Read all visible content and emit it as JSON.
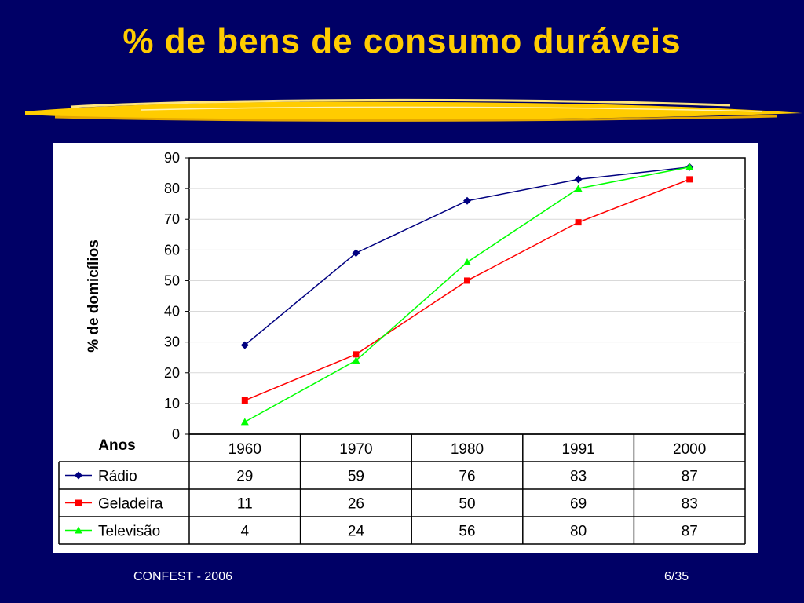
{
  "slide": {
    "title": "% de bens de consumo duráveis",
    "footer_left": "CONFEST - 2006",
    "footer_right": "6/35"
  },
  "chart_data": {
    "type": "line",
    "title": "",
    "xlabel": "",
    "ylabel": "% de domicílios",
    "ylim": [
      0,
      90
    ],
    "yticks": [
      0,
      10,
      20,
      30,
      40,
      50,
      60,
      70,
      80,
      90
    ],
    "grid": true,
    "categories": [
      "1960",
      "1970",
      "1980",
      "1991",
      "2000"
    ],
    "table_header": "Anos",
    "series": [
      {
        "name": "Rádio",
        "values": [
          29,
          59,
          76,
          83,
          87
        ],
        "color": "#000080",
        "marker": "diamond"
      },
      {
        "name": "Geladeira",
        "values": [
          11,
          26,
          50,
          69,
          83
        ],
        "color": "#FF0000",
        "marker": "square"
      },
      {
        "name": "Televisão",
        "values": [
          4,
          24,
          56,
          80,
          87
        ],
        "color": "#00FF00",
        "marker": "triangle"
      }
    ]
  },
  "colors": {
    "background": "#000066",
    "title": "#FFCC00",
    "brush": "#FFCC00"
  }
}
